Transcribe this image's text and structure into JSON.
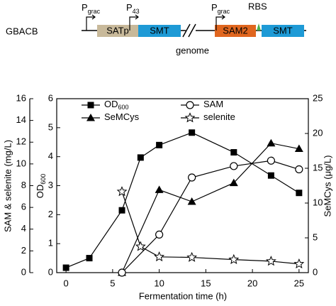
{
  "diagram": {
    "strain": "GBACB",
    "promoters": [
      {
        "main": "P",
        "sub": "grac"
      },
      {
        "main": "P",
        "sub": "43"
      },
      {
        "main": "P",
        "sub": "grac"
      }
    ],
    "genes": [
      "SATp",
      "SMT",
      "SAM2",
      "SMT"
    ],
    "rbs": "RBS",
    "genome": "genome"
  },
  "chart_data": {
    "type": "line",
    "x_label": "Fermentation time (h)",
    "y_label": {
      "main": "OD",
      "sub": "600"
    },
    "y2_label": "SeMCys (μg/L)",
    "y3_label": "SAM & selenite (mg/L)",
    "xlim": [
      -1,
      26
    ],
    "xticks": [
      0,
      5,
      10,
      15,
      20,
      25
    ],
    "ylim": [
      0,
      6
    ],
    "yticks": [
      0,
      1,
      2,
      3,
      4,
      5,
      6
    ],
    "y2lim": [
      0,
      25
    ],
    "y2ticks": [
      0,
      5,
      10,
      15,
      20,
      25
    ],
    "y3lim": [
      0,
      16
    ],
    "y3ticks": [
      0,
      2,
      4,
      6,
      8,
      10,
      12,
      14,
      16
    ],
    "series": [
      {
        "name": "OD",
        "name_sub": "600",
        "marker": "square",
        "color": "#000000",
        "axis": "y",
        "x": [
          0,
          2.5,
          6,
          8,
          10,
          13.5,
          18,
          22,
          25
        ],
        "values": [
          0.17,
          0.5,
          2.15,
          3.97,
          4.4,
          4.83,
          4.15,
          3.35,
          2.75
        ]
      },
      {
        "name": "SeMCys",
        "marker": "triangle",
        "color": "#000000",
        "axis": "y2",
        "x": [
          6,
          10,
          13.5,
          18,
          22,
          25
        ],
        "values": [
          0,
          11.9,
          10.2,
          12.9,
          18.6,
          17.8
        ]
      },
      {
        "name": "SAM",
        "marker": "circle",
        "color": "#000000",
        "axis": "y3",
        "x": [
          6,
          10,
          13.5,
          18,
          22,
          25
        ],
        "values": [
          0,
          3.5,
          8.75,
          9.8,
          10.3,
          9.5
        ]
      },
      {
        "name": "selenite",
        "marker": "star",
        "color": "#000000",
        "axis": "y3",
        "x": [
          6,
          8,
          10,
          13.5,
          18,
          22,
          25
        ],
        "values": [
          7.45,
          2.4,
          1.45,
          1.4,
          1.2,
          1.05,
          0.8
        ]
      }
    ]
  }
}
